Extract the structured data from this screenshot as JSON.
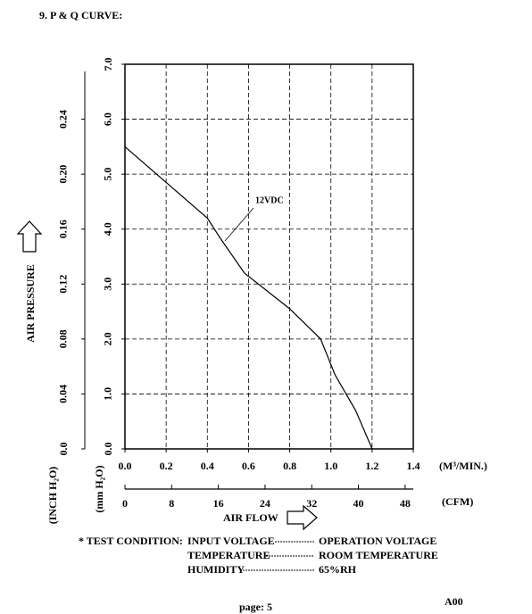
{
  "header": "9. P & Q CURVE:",
  "chart_data": {
    "type": "line",
    "y_label": "AIR PRESSURE",
    "y_unit": "(mm H₂O)",
    "y2_unit": "(INCH H₂O)",
    "x_unit": "(M³/MIN.)",
    "x2_unit": "(CFM)",
    "x_label": "AIR FLOW",
    "x": [
      0,
      0.4,
      0.46,
      0.58,
      0.8,
      0.95,
      1.02,
      1.12,
      1.2
    ],
    "series": [
      {
        "name": "12VDC",
        "color": "#000000",
        "values": [
          5.5,
          4.2,
          3.85,
          3.2,
          2.55,
          2.0,
          1.35,
          0.7,
          0.0
        ]
      }
    ],
    "xlim": [
      0,
      1.4
    ],
    "xticks": [
      {
        "value": 0,
        "label": "0.0"
      },
      0.2,
      0.4,
      0.6,
      0.8,
      {
        "value": 1,
        "label": "1.0"
      },
      1.2,
      1.4
    ],
    "ylim": [
      0,
      7
    ],
    "yticks": [
      {
        "value": 0,
        "label": "0.0"
      },
      {
        "value": 1,
        "label": "1.0"
      },
      {
        "value": 2,
        "label": "2.0"
      },
      {
        "value": 3,
        "label": "3.0"
      },
      {
        "value": 4,
        "label": "4.0"
      },
      {
        "value": 5,
        "label": "5.0"
      },
      {
        "value": 6,
        "label": "6.0"
      },
      {
        "value": 7,
        "label": "7.0"
      }
    ],
    "y2lim": [
      0,
      0.28
    ],
    "y2ticks": [
      {
        "value": 0,
        "label": "0.0"
      },
      0.04,
      0.08,
      0.12,
      0.16,
      {
        "value": 0.2,
        "label": "0.20"
      },
      0.24
    ],
    "x2lim": [
      0,
      49.4
    ],
    "x2ticks": [
      0,
      8,
      16,
      24,
      32,
      40,
      48
    ],
    "grid": true
  },
  "test_condition": {
    "title": "* TEST CONDITION:",
    "rows": [
      [
        "INPUT VOLTAGE",
        "OPERATION VOLTAGE"
      ],
      [
        "TEMPERATURE",
        "ROOM TEMPERATURE"
      ],
      [
        "HUMIDITY",
        "65%RH"
      ]
    ]
  },
  "footer": {
    "page": "page: 5",
    "code": "A00"
  }
}
